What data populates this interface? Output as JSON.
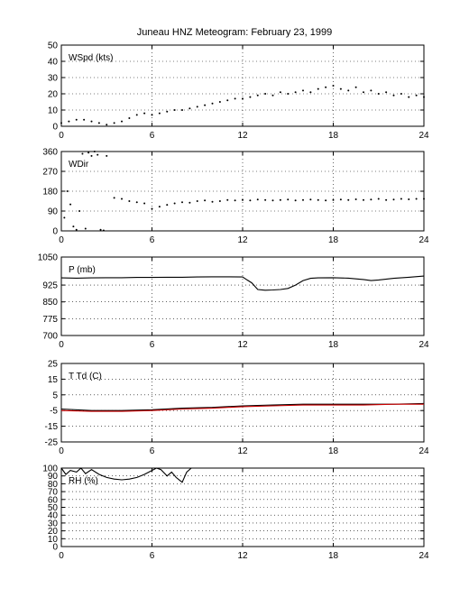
{
  "title": "Juneau HNZ Meteogram:  February 23, 1999",
  "chart_data": [
    {
      "type": "scatter",
      "label": "WSpd (kts)",
      "xlim": [
        0,
        24
      ],
      "ylim": [
        0,
        50
      ],
      "xticks": [
        0,
        6,
        12,
        18,
        24
      ],
      "yticks": [
        0,
        10,
        20,
        30,
        40,
        50
      ],
      "grid": true,
      "series": [
        {
          "color": "#000000",
          "x": [
            0,
            0.5,
            1,
            1.5,
            2,
            2.5,
            3,
            3.5,
            4,
            4.5,
            5,
            5.5,
            6,
            6.5,
            7,
            7.5,
            8,
            8.5,
            9,
            9.5,
            10,
            10.5,
            11,
            11.5,
            12,
            12.5,
            13,
            13.5,
            14,
            14.5,
            15,
            15.5,
            16,
            16.5,
            17,
            17.5,
            18,
            18.5,
            19,
            19.5,
            20,
            20.5,
            21,
            21.5,
            22,
            22.5,
            23,
            23.5,
            24
          ],
          "y": [
            2,
            3,
            4,
            4,
            3,
            2,
            1,
            2,
            3,
            5,
            7,
            8,
            7,
            8,
            9,
            10,
            10,
            11,
            12,
            13,
            14,
            15,
            16,
            17,
            17,
            18,
            19,
            20,
            19,
            21,
            20,
            21,
            22,
            21,
            23,
            24,
            25,
            23,
            22,
            24,
            21,
            22,
            20,
            21,
            19,
            20,
            18,
            19,
            18
          ]
        }
      ]
    },
    {
      "type": "scatter",
      "label": "WDir",
      "xlim": [
        0,
        24
      ],
      "ylim": [
        0,
        360
      ],
      "xticks": [
        0,
        6,
        12,
        18,
        24
      ],
      "yticks": [
        0,
        90,
        180,
        270,
        360
      ],
      "grid": true,
      "series": [
        {
          "color": "#000000",
          "x": [
            0.2,
            0.4,
            0.6,
            0.8,
            1.0,
            1.2,
            1.4,
            1.6,
            1.8,
            2.0,
            2.2,
            2.4,
            2.6,
            2.8,
            3.0,
            3.5,
            4,
            4.5,
            5,
            5.5,
            6,
            6.5,
            7,
            7.5,
            8,
            8.5,
            9,
            9.5,
            10,
            10.5,
            11,
            11.5,
            12,
            12.5,
            13,
            13.5,
            14,
            14.5,
            15,
            15.5,
            16,
            16.5,
            17,
            17.5,
            18,
            18.5,
            19,
            19.5,
            20,
            20.5,
            21,
            21.5,
            22,
            22.5,
            23,
            23.5,
            24
          ],
          "y": [
            60,
            180,
            120,
            20,
            5,
            90,
            350,
            10,
            355,
            340,
            360,
            345,
            5,
            2,
            340,
            150,
            145,
            135,
            130,
            125,
            100,
            110,
            118,
            125,
            130,
            128,
            135,
            138,
            132,
            135,
            140,
            138,
            140,
            138,
            142,
            140,
            138,
            140,
            142,
            138,
            140,
            142,
            140,
            138,
            140,
            142,
            140,
            143,
            140,
            142,
            145,
            140,
            142,
            145,
            143,
            145,
            145
          ]
        }
      ]
    },
    {
      "type": "line",
      "label": "P (mb)",
      "xlim": [
        0,
        24
      ],
      "ylim": [
        700,
        1050
      ],
      "xticks": [
        0,
        6,
        12,
        18,
        24
      ],
      "yticks": [
        700,
        775,
        850,
        925,
        1050
      ],
      "grid": true,
      "series": [
        {
          "color": "#000000",
          "x": [
            0,
            1,
            2,
            3,
            4,
            5,
            6,
            7,
            8,
            9,
            10,
            11,
            12,
            12.3,
            12.6,
            13,
            13.5,
            14,
            14.5,
            15,
            15.5,
            16,
            16.5,
            17,
            18,
            19,
            20,
            20.5,
            21,
            22,
            23,
            24
          ],
          "y": [
            957,
            956,
            957,
            958,
            958,
            959,
            959,
            960,
            960,
            961,
            962,
            962,
            961,
            948,
            935,
            905,
            902,
            903,
            905,
            910,
            925,
            945,
            955,
            957,
            958,
            956,
            950,
            945,
            948,
            955,
            960,
            965
          ]
        }
      ]
    },
    {
      "type": "line",
      "label": "T Td (C)",
      "xlim": [
        0,
        24
      ],
      "ylim": [
        -25,
        25
      ],
      "xticks": [
        0,
        6,
        12,
        18,
        24
      ],
      "yticks": [
        -25,
        -15,
        -5,
        5,
        15,
        25
      ],
      "grid": true,
      "series": [
        {
          "color": "#000000",
          "x": [
            0,
            2,
            4,
            6,
            8,
            10,
            12,
            14,
            16,
            18,
            20,
            22,
            24
          ],
          "y": [
            -4,
            -5,
            -5,
            -4.5,
            -3.5,
            -3,
            -2,
            -1.5,
            -1,
            -1,
            -1,
            -1,
            -0.5
          ]
        },
        {
          "color": "#cc0000",
          "x": [
            0,
            2,
            4,
            6,
            8,
            10,
            12,
            14,
            16,
            18,
            20,
            22,
            24
          ],
          "y": [
            -5,
            -5.5,
            -5.5,
            -5,
            -4,
            -3.5,
            -2.5,
            -2,
            -1.5,
            -1.5,
            -1.5,
            -1,
            -1
          ]
        }
      ]
    },
    {
      "type": "line",
      "label": "RH (%)",
      "xlim": [
        0,
        24
      ],
      "ylim": [
        0,
        100
      ],
      "xticks": [
        0,
        6,
        12,
        18,
        24
      ],
      "yticks": [
        0,
        10,
        20,
        30,
        40,
        50,
        60,
        70,
        80,
        90,
        100
      ],
      "grid": true,
      "series": [
        {
          "color": "#000000",
          "x": [
            0,
            0.3,
            0.6,
            1,
            1.3,
            1.6,
            2,
            2.5,
            3,
            3.5,
            4,
            4.5,
            5,
            5.5,
            6,
            6.3,
            6.6,
            7,
            7.3,
            7.6,
            8,
            8.3,
            8.6,
            9,
            9.5,
            10,
            10.5
          ],
          "y": [
            100,
            92,
            97,
            95,
            100,
            93,
            98,
            92,
            88,
            86,
            85,
            86,
            88,
            92,
            97,
            100,
            98,
            90,
            95,
            88,
            82,
            95,
            100,
            100,
            100,
            100,
            100
          ]
        }
      ]
    }
  ]
}
